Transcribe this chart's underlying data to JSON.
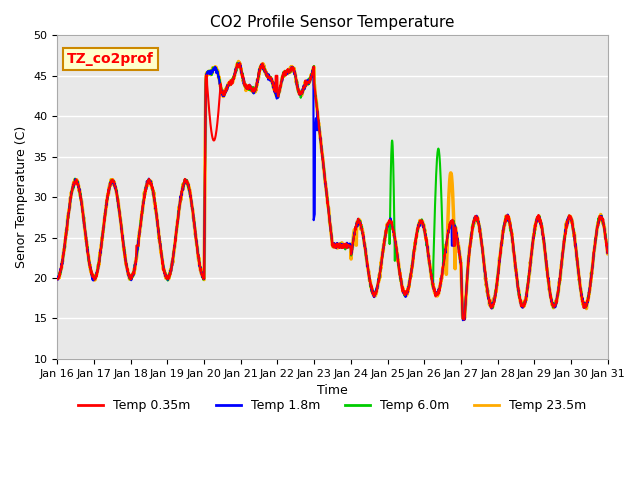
{
  "title": "CO2 Profile Sensor Temperature",
  "xlabel": "Time",
  "ylabel": "Senor Temperature (C)",
  "ylim": [
    10,
    50
  ],
  "xlim": [
    0,
    15
  ],
  "annotation_text": "TZ_co2prof",
  "annotation_bg": "#ffffcc",
  "annotation_border": "#cc8800",
  "plot_bg": "#e8e8e8",
  "colors": {
    "temp_035m": "#ff0000",
    "temp_18m": "#0000ff",
    "temp_60m": "#00cc00",
    "temp_235m": "#ffaa00"
  },
  "legend_labels": [
    "Temp 0.35m",
    "Temp 1.8m",
    "Temp 6.0m",
    "Temp 23.5m"
  ],
  "x_tick_labels": [
    "Jan 16",
    "Jan 17",
    "Jan 18",
    "Jan 19",
    "Jan 20",
    "Jan 21",
    "Jan 22",
    "Jan 23",
    "Jan 24",
    "Jan 25",
    "Jan 26",
    "Jan 27",
    "Jan 28",
    "Jan 29",
    "Jan 30",
    "Jan 31"
  ],
  "yticks": [
    10,
    15,
    20,
    25,
    30,
    35,
    40,
    45,
    50
  ],
  "linewidth_thin": 1.0,
  "linewidth_orange": 2.5
}
